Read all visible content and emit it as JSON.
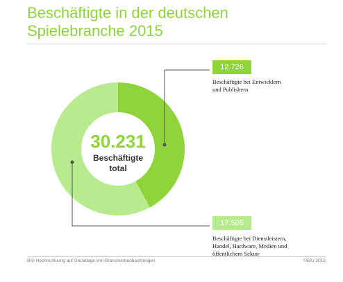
{
  "title_line1": "Beschäftigte in der deutschen",
  "title_line2": "Spielebranche 2015",
  "center": {
    "value": "30.231",
    "label_line1": "Beschäftigte",
    "label_line2": "total"
  },
  "colors": {
    "accent": "#8ed43a",
    "light": "#b8ea8e",
    "connector": "#555555"
  },
  "chart_data": {
    "type": "pie",
    "style": "donut",
    "total": 30231,
    "slices": [
      {
        "value": 12726,
        "value_label": "12.726",
        "label_line1": "Beschäftigte bei Entwicklern",
        "label_line2": "und Publishern",
        "color": "#8ed43a"
      },
      {
        "value": 17505,
        "value_label": "17.505",
        "label_line1": "Beschäftigte bei Dienstleistern,",
        "label_line2": "Handel, Hardware, Medien und",
        "label_line3": "öffentlichem Sektor",
        "color": "#b8ea8e"
      }
    ]
  },
  "footer": {
    "source": "BIU Hochrechnung auf Grundlage von Branchenbeobachtungen",
    "copyright": "©BIU 2015"
  }
}
